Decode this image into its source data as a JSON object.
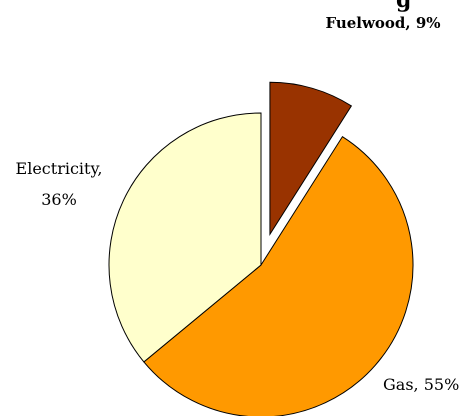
{
  "chart_data": {
    "type": "pie",
    "title": "g",
    "slices": [
      {
        "label": "Fuelwood",
        "value": 9,
        "color": "#993300",
        "exploded": true,
        "label_line1": "Fuelwood, 9%",
        "label_line2": ""
      },
      {
        "label": "Gas",
        "value": 55,
        "color": "#FF9900",
        "exploded": false,
        "label_line1": "Gas, 55%",
        "label_line2": ""
      },
      {
        "label": "Electricity",
        "value": 36,
        "color": "#FFFFCC",
        "exploded": false,
        "label_line1": "Electricity,",
        "label_line2": "36%"
      }
    ]
  }
}
